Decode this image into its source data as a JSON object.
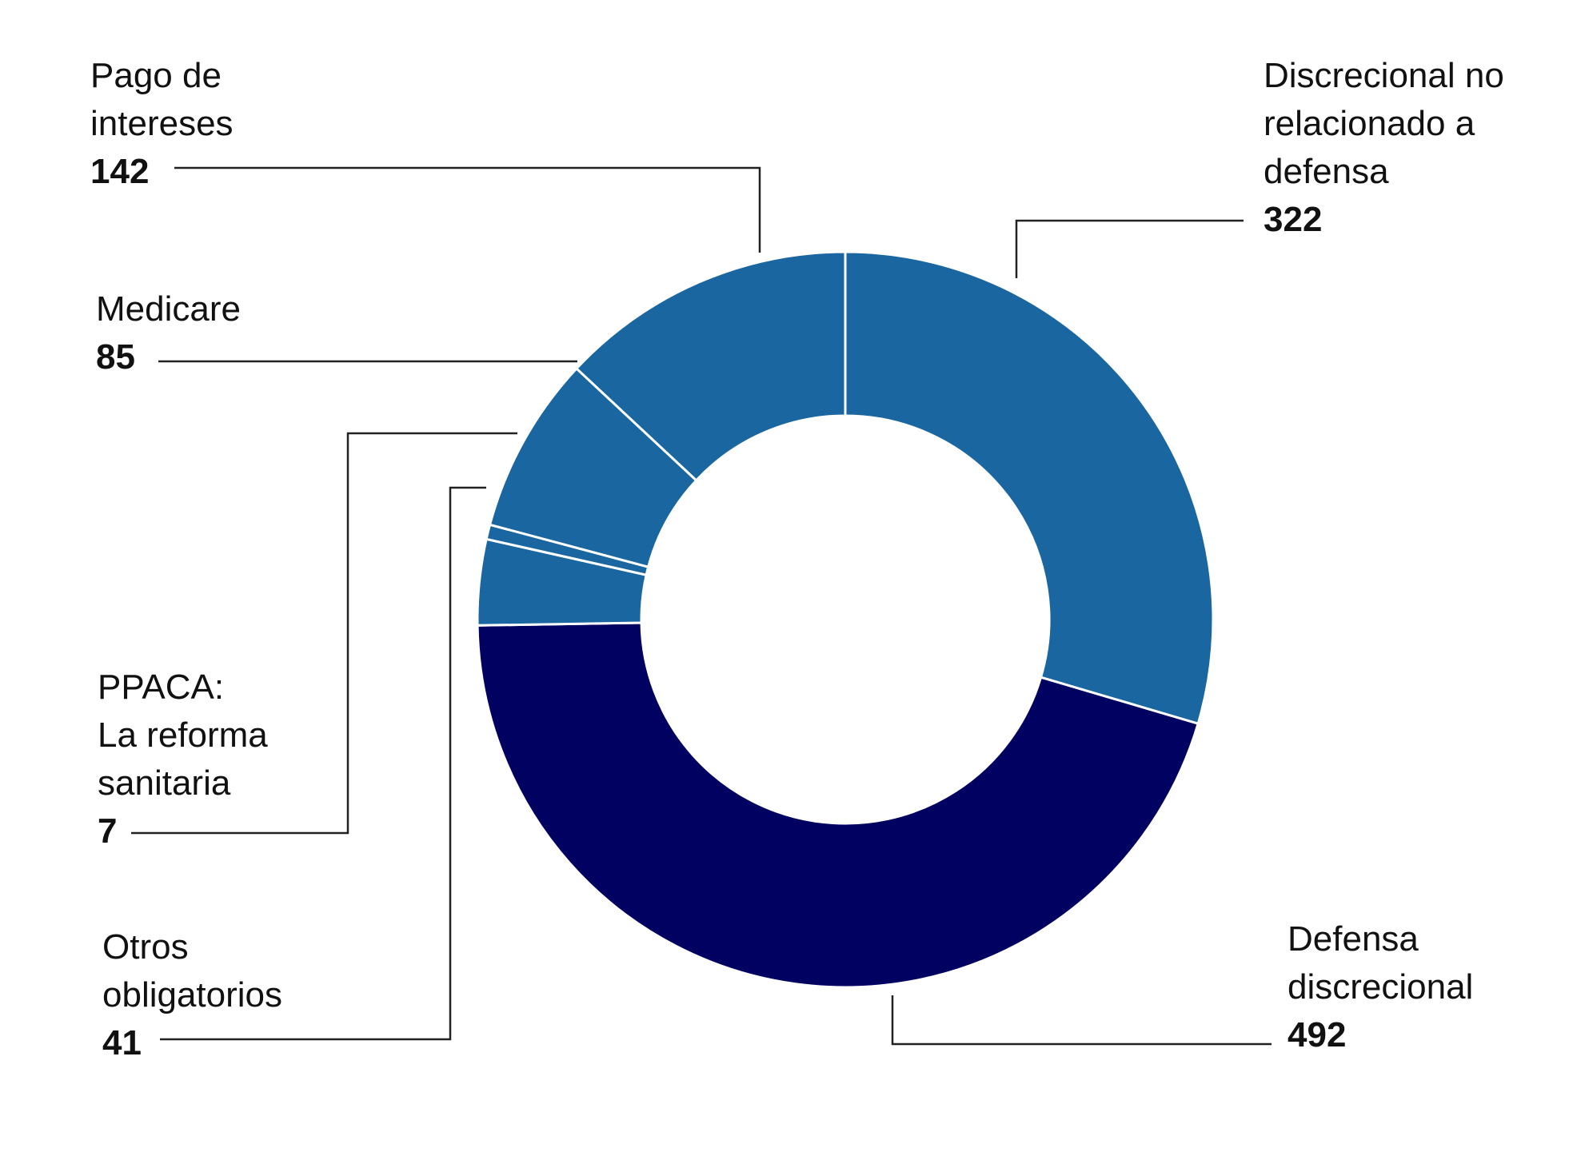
{
  "chart_data": {
    "type": "pie",
    "variant": "donut",
    "title": "",
    "slices": [
      {
        "label": "Discrecional no relacionado a defensa",
        "lines": [
          "Discrecional no",
          "relacionado a",
          "defensa"
        ],
        "value": 322,
        "color": "#1a66a0"
      },
      {
        "label": "Defensa discrecional",
        "lines": [
          "Defensa",
          "discrecional"
        ],
        "value": 492,
        "color": "#010161"
      },
      {
        "label": "Otros obligatorios",
        "lines": [
          "Otros",
          "obligatorios"
        ],
        "value": 41,
        "color": "#1a66a0"
      },
      {
        "label": "PPACA: La reforma sanitaria",
        "lines": [
          "PPACA:",
          "La reforma",
          "sanitaria"
        ],
        "value": 7,
        "color": "#1a66a0"
      },
      {
        "label": "Medicare",
        "lines": [
          "Medicare"
        ],
        "value": 85,
        "color": "#1a66a0"
      },
      {
        "label": "Pago de intereses",
        "lines": [
          "Pago de",
          "intereses"
        ],
        "value": 142,
        "color": "#1a66a0"
      }
    ]
  }
}
